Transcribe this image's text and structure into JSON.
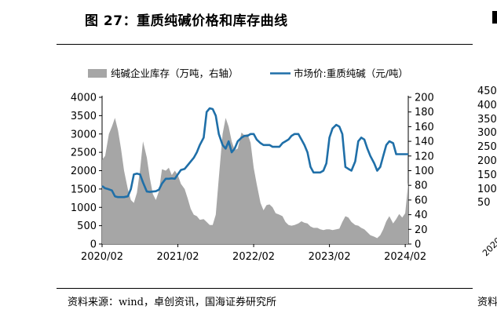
{
  "header": {
    "title": "图 27：重质纯碱价格和库存曲线",
    "source": "资料来源：wind，卓创资讯，国海证券研究所",
    "right_panel_source": "资料"
  },
  "right_panel_ticks": [
    "450",
    "400",
    "350",
    "300",
    "250",
    "200",
    "150",
    "100",
    "50"
  ],
  "right_panel_xcut": "2020",
  "colors": {
    "area": "#a6a6a6",
    "line": "#1f6fa8"
  },
  "chart_data": {
    "type": "area+line",
    "legend_position": "top",
    "legend": [
      "纯碱企业库存（万吨，右轴）",
      "市场价:重质纯碱（元/吨）"
    ],
    "x_tick_labels": [
      "2020/02",
      "2021/02",
      "2022/02",
      "2023/02",
      "2024/02"
    ],
    "xlim": [
      "2020-02",
      "2024-02"
    ],
    "left_axis": {
      "ylim": [
        0,
        4000
      ],
      "ticks": [
        0,
        500,
        1000,
        1500,
        2000,
        2500,
        3000,
        3500,
        4000
      ]
    },
    "right_axis": {
      "ylim": [
        0,
        200
      ],
      "ticks": [
        0,
        20,
        40,
        60,
        80,
        100,
        120,
        140,
        160,
        180,
        200
      ]
    },
    "series": [
      {
        "name": "纯碱企业库存（万吨，右轴）",
        "type": "area",
        "axis": "right",
        "x": [
          2020.08,
          2020.12,
          2020.17,
          2020.21,
          2020.25,
          2020.29,
          2020.33,
          2020.37,
          2020.42,
          2020.46,
          2020.5,
          2020.54,
          2020.58,
          2020.62,
          2020.67,
          2020.71,
          2020.75,
          2020.79,
          2020.83,
          2020.87,
          2020.92,
          2020.96,
          2021.0,
          2021.04,
          2021.08,
          2021.12,
          2021.17,
          2021.21,
          2021.25,
          2021.29,
          2021.33,
          2021.37,
          2021.42,
          2021.46,
          2021.5,
          2021.54,
          2021.58,
          2021.62,
          2021.67,
          2021.71,
          2021.75,
          2021.79,
          2021.83,
          2021.87,
          2021.92,
          2021.96,
          2022.0,
          2022.04,
          2022.08,
          2022.12,
          2022.17,
          2022.21,
          2022.25,
          2022.29,
          2022.33,
          2022.37,
          2022.42,
          2022.46,
          2022.5,
          2022.54,
          2022.58,
          2022.62,
          2022.67,
          2022.71,
          2022.75,
          2022.79,
          2022.83,
          2022.87,
          2022.92,
          2022.96,
          2023.0,
          2023.04,
          2023.08,
          2023.12,
          2023.17,
          2023.21,
          2023.25,
          2023.29,
          2023.33,
          2023.37,
          2023.42,
          2023.46,
          2023.5,
          2023.54,
          2023.58,
          2023.62,
          2023.67,
          2023.71,
          2023.75,
          2023.79,
          2023.83,
          2023.87,
          2023.92,
          2023.96,
          2024.0,
          2024.04,
          2024.08,
          2024.12
        ],
        "values": [
          115,
          120,
          150,
          160,
          172,
          155,
          130,
          100,
          75,
          60,
          56,
          70,
          100,
          140,
          118,
          90,
          68,
          60,
          72,
          102,
          100,
          104,
          94,
          100,
          94,
          82,
          75,
          62,
          48,
          40,
          38,
          33,
          34,
          30,
          26,
          26,
          40,
          90,
          150,
          172,
          160,
          140,
          128,
          130,
          152,
          148,
          150,
          138,
          104,
          82,
          56,
          46,
          53,
          54,
          50,
          42,
          40,
          38,
          30,
          26,
          25,
          26,
          28,
          31,
          29,
          28,
          24,
          22,
          22,
          20,
          19,
          20,
          20,
          19,
          20,
          21,
          30,
          38,
          36,
          30,
          26,
          25,
          22,
          20,
          16,
          12,
          10,
          8,
          12,
          20,
          31,
          38,
          28,
          34,
          41,
          36,
          42,
          84
        ]
      },
      {
        "name": "市场价:重质纯碱（元/吨）",
        "type": "line",
        "axis": "left",
        "x": [
          2020.08,
          2020.12,
          2020.17,
          2020.21,
          2020.25,
          2020.29,
          2020.33,
          2020.37,
          2020.42,
          2020.46,
          2020.5,
          2020.54,
          2020.58,
          2020.62,
          2020.67,
          2020.71,
          2020.75,
          2020.79,
          2020.83,
          2020.87,
          2020.92,
          2020.96,
          2021.0,
          2021.04,
          2021.08,
          2021.12,
          2021.17,
          2021.21,
          2021.25,
          2021.29,
          2021.33,
          2021.37,
          2021.42,
          2021.46,
          2021.5,
          2021.54,
          2021.58,
          2021.62,
          2021.67,
          2021.71,
          2021.75,
          2021.79,
          2021.83,
          2021.87,
          2021.92,
          2021.96,
          2022.0,
          2022.04,
          2022.08,
          2022.12,
          2022.17,
          2022.21,
          2022.25,
          2022.29,
          2022.33,
          2022.37,
          2022.42,
          2022.46,
          2022.5,
          2022.54,
          2022.58,
          2022.62,
          2022.67,
          2022.71,
          2022.75,
          2022.79,
          2022.83,
          2022.87,
          2022.92,
          2022.96,
          2023.0,
          2023.04,
          2023.08,
          2023.12,
          2023.17,
          2023.21,
          2023.25,
          2023.29,
          2023.33,
          2023.37,
          2023.42,
          2023.46,
          2023.5,
          2023.54,
          2023.58,
          2023.62,
          2023.67,
          2023.71,
          2023.75,
          2023.79,
          2023.83,
          2023.87,
          2023.92,
          2023.96,
          2024.0,
          2024.04,
          2024.08,
          2024.12
        ],
        "values": [
          1580,
          1520,
          1490,
          1460,
          1300,
          1280,
          1280,
          1280,
          1300,
          1500,
          1900,
          1920,
          1900,
          1680,
          1430,
          1420,
          1430,
          1440,
          1480,
          1650,
          1780,
          1780,
          1790,
          1780,
          1900,
          2020,
          2050,
          2150,
          2250,
          2350,
          2500,
          2700,
          2900,
          3600,
          3700,
          3680,
          3500,
          3000,
          2700,
          2600,
          2800,
          2500,
          2600,
          2800,
          2900,
          2950,
          2950,
          3000,
          3000,
          2850,
          2750,
          2700,
          2700,
          2700,
          2650,
          2650,
          2650,
          2750,
          2800,
          2850,
          2950,
          3000,
          3000,
          2850,
          2700,
          2500,
          2100,
          1950,
          1950,
          1950,
          2000,
          2200,
          2900,
          3150,
          3250,
          3200,
          3000,
          2100,
          2050,
          2000,
          2250,
          2800,
          2900,
          2850,
          2600,
          2400,
          2200,
          2000,
          2100,
          2400,
          2700,
          2800,
          2750,
          2450,
          2450,
          2450,
          2450,
          2450
        ]
      }
    ]
  }
}
